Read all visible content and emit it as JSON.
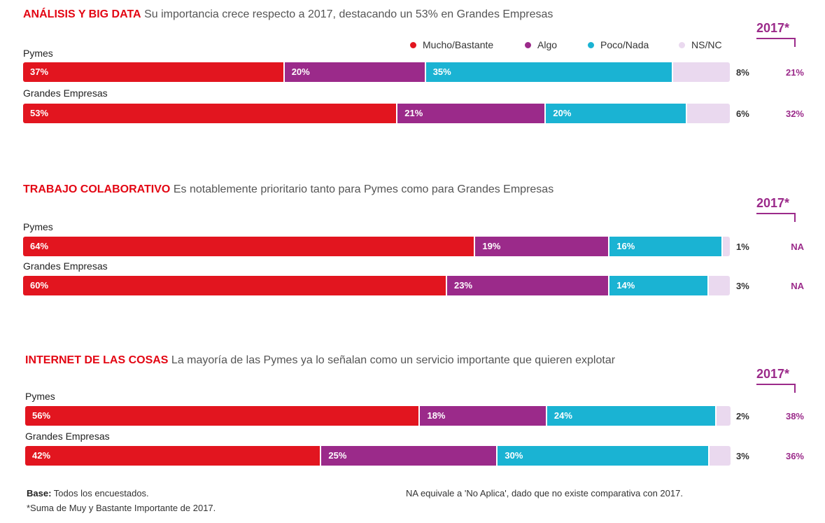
{
  "legend": {
    "mucho": "Mucho/Bastante",
    "algo": "Algo",
    "poco": "Poco/Nada",
    "nsnc": "NS/NC"
  },
  "colors": {
    "mucho": "#e2151f",
    "algo": "#9b2a8a",
    "poco": "#1ab3d3",
    "nsnc": "#ead9ef"
  },
  "year_label": "2017*",
  "chart_data": [
    {
      "type": "bar",
      "stacked": true,
      "orientation": "horizontal",
      "title": "ANÁLISIS Y BIG DATA",
      "subtitle": "Su importancia crece respecto a 2017, destacando un 53% en Grandes Empresas",
      "series_names": [
        "Mucho/Bastante",
        "Algo",
        "Poco/Nada",
        "NS/NC"
      ],
      "rows": [
        {
          "label": "Pymes",
          "values": [
            37,
            20,
            35,
            8
          ],
          "display": [
            "37%",
            "20%",
            "35%",
            "8%"
          ],
          "prev_2017": "21%"
        },
        {
          "label": "Grandes Empresas",
          "values": [
            53,
            21,
            20,
            6
          ],
          "display": [
            "53%",
            "21%",
            "20%",
            "6%"
          ],
          "prev_2017": "32%"
        }
      ]
    },
    {
      "type": "bar",
      "stacked": true,
      "orientation": "horizontal",
      "title": "TRABAJO COLABORATIVO",
      "subtitle": "Es notablemente prioritario tanto para Pymes como para Grandes Empresas",
      "series_names": [
        "Mucho/Bastante",
        "Algo",
        "Poco/Nada",
        "NS/NC"
      ],
      "rows": [
        {
          "label": "Pymes",
          "values": [
            64,
            19,
            16,
            1
          ],
          "display": [
            "64%",
            "19%",
            "16%",
            "1%"
          ],
          "prev_2017": "NA"
        },
        {
          "label": "Grandes Empresas",
          "values": [
            60,
            23,
            14,
            3
          ],
          "display": [
            "60%",
            "23%",
            "14%",
            "3%"
          ],
          "prev_2017": "NA"
        }
      ]
    },
    {
      "type": "bar",
      "stacked": true,
      "orientation": "horizontal",
      "title": "INTERNET DE LAS COSAS",
      "subtitle": "La mayoría de las Pymes ya lo señalan como un servicio importante que quieren explotar",
      "series_names": [
        "Mucho/Bastante",
        "Algo",
        "Poco/Nada",
        "NS/NC"
      ],
      "rows": [
        {
          "label": "Pymes",
          "values": [
            56,
            18,
            24,
            2
          ],
          "display": [
            "56%",
            "18%",
            "24%",
            "2%"
          ],
          "prev_2017": "38%"
        },
        {
          "label": "Grandes Empresas",
          "values": [
            42,
            25,
            30,
            3
          ],
          "display": [
            "42%",
            "25%",
            "30%",
            "3%"
          ],
          "prev_2017": "36%"
        }
      ]
    }
  ],
  "footer": {
    "base_label": "Base:",
    "base_text": " Todos los encuestados.",
    "note": "*Suma de Muy y Bastante Importante de 2017.",
    "na_note": "NA equivale a 'No Aplica', dado que no existe comparativa con 2017."
  }
}
